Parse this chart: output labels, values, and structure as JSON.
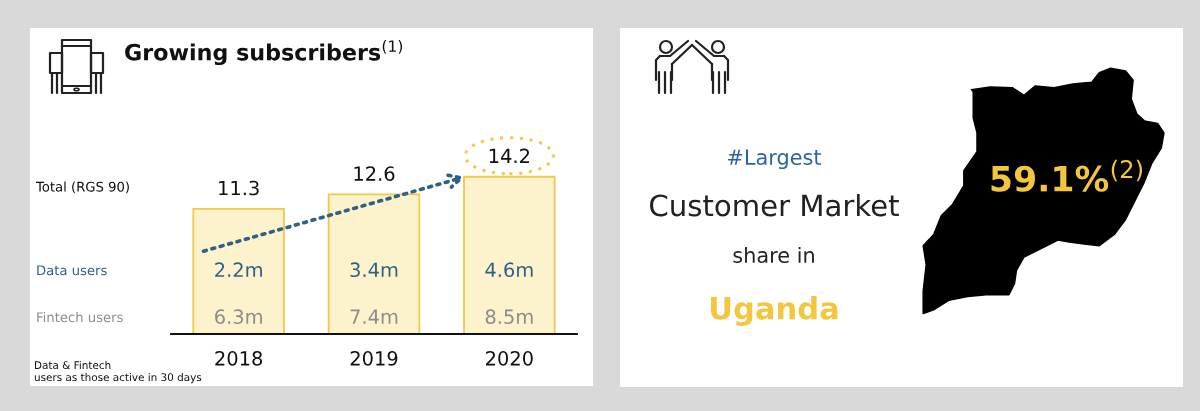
{
  "chart_data": [
    {
      "type": "bar",
      "title": "Growing subscribers$^{(1)}$",
      "categories": [
        "2018",
        "2019",
        "2020"
      ],
      "series": [
        {
          "name": "Total (RGS 90)",
          "color": "#fcf2cc",
          "values": [
            11.3,
            12.6,
            14.2
          ]
        }
      ],
      "data_labels": true,
      "annotations": [
        "Data users",
        "2.2m",
        "3.4m",
        "4.6m",
        "Fintech users",
        "6.3m",
        "7.4m",
        "8.5m",
        "Data & Fintech\nusers as those active in 30 days"
      ]
    },
    {
      "type": "other",
      "annotations": [
        "#Largest",
        "Customer Market",
        "share in",
        "Uganda",
        "59.1%$^{(2)}$"
      ]
    }
  ]
}
